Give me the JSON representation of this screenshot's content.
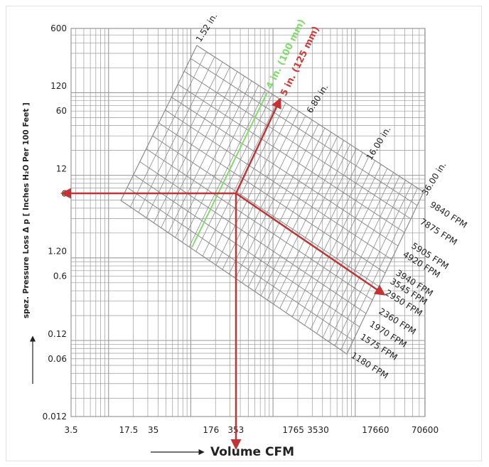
{
  "chart_data": {
    "type": "line",
    "title": "",
    "xlabel": "Volume CFM",
    "ylabel": "spez. Pressure Loss Δ p [ Inches H₂O Per 100 Feet ]",
    "x_scale": "log",
    "y_scale": "log",
    "xlim": [
      3.5,
      70600
    ],
    "ylim": [
      0.012,
      600
    ],
    "x_ticks": [
      "3.5",
      "17.5",
      "35",
      "176",
      "353",
      "1765",
      "3530",
      "17660",
      "70600"
    ],
    "y_ticks": [
      "600",
      "120",
      "60",
      "12",
      "6",
      "1.20",
      "0.6",
      "0.12",
      "0.06",
      "0.012"
    ],
    "grid": true,
    "diameter_labels": [
      "1.52 in.",
      "6.80 in.",
      "16.00 in.",
      "36.00 in."
    ],
    "velocity_labels": [
      "9840 FPM",
      "7875 FPM",
      "5905 FPM",
      "4920 FPM",
      "3940 FPM",
      "3545 FPM",
      "2950 FPM",
      "2360 FPM",
      "1970 FPM",
      "1575 FPM",
      "1180 FPM"
    ],
    "highlighted_diameters": [
      {
        "label": "4 in. (100 mm)",
        "color": "#7fdc6a"
      },
      {
        "label": "5 in. (125 mm)",
        "color": "#d23a3a"
      }
    ],
    "example_reading": {
      "volume_cfm": 353,
      "pressure_loss": 6,
      "diameter": "5 in. (125 mm)",
      "velocity": "2950 FPM"
    },
    "colors": {
      "grid": "#9a9a9a",
      "nomogram": "#8c8c8c",
      "green": "#7fdc6a",
      "red": "#d23a3a"
    }
  }
}
